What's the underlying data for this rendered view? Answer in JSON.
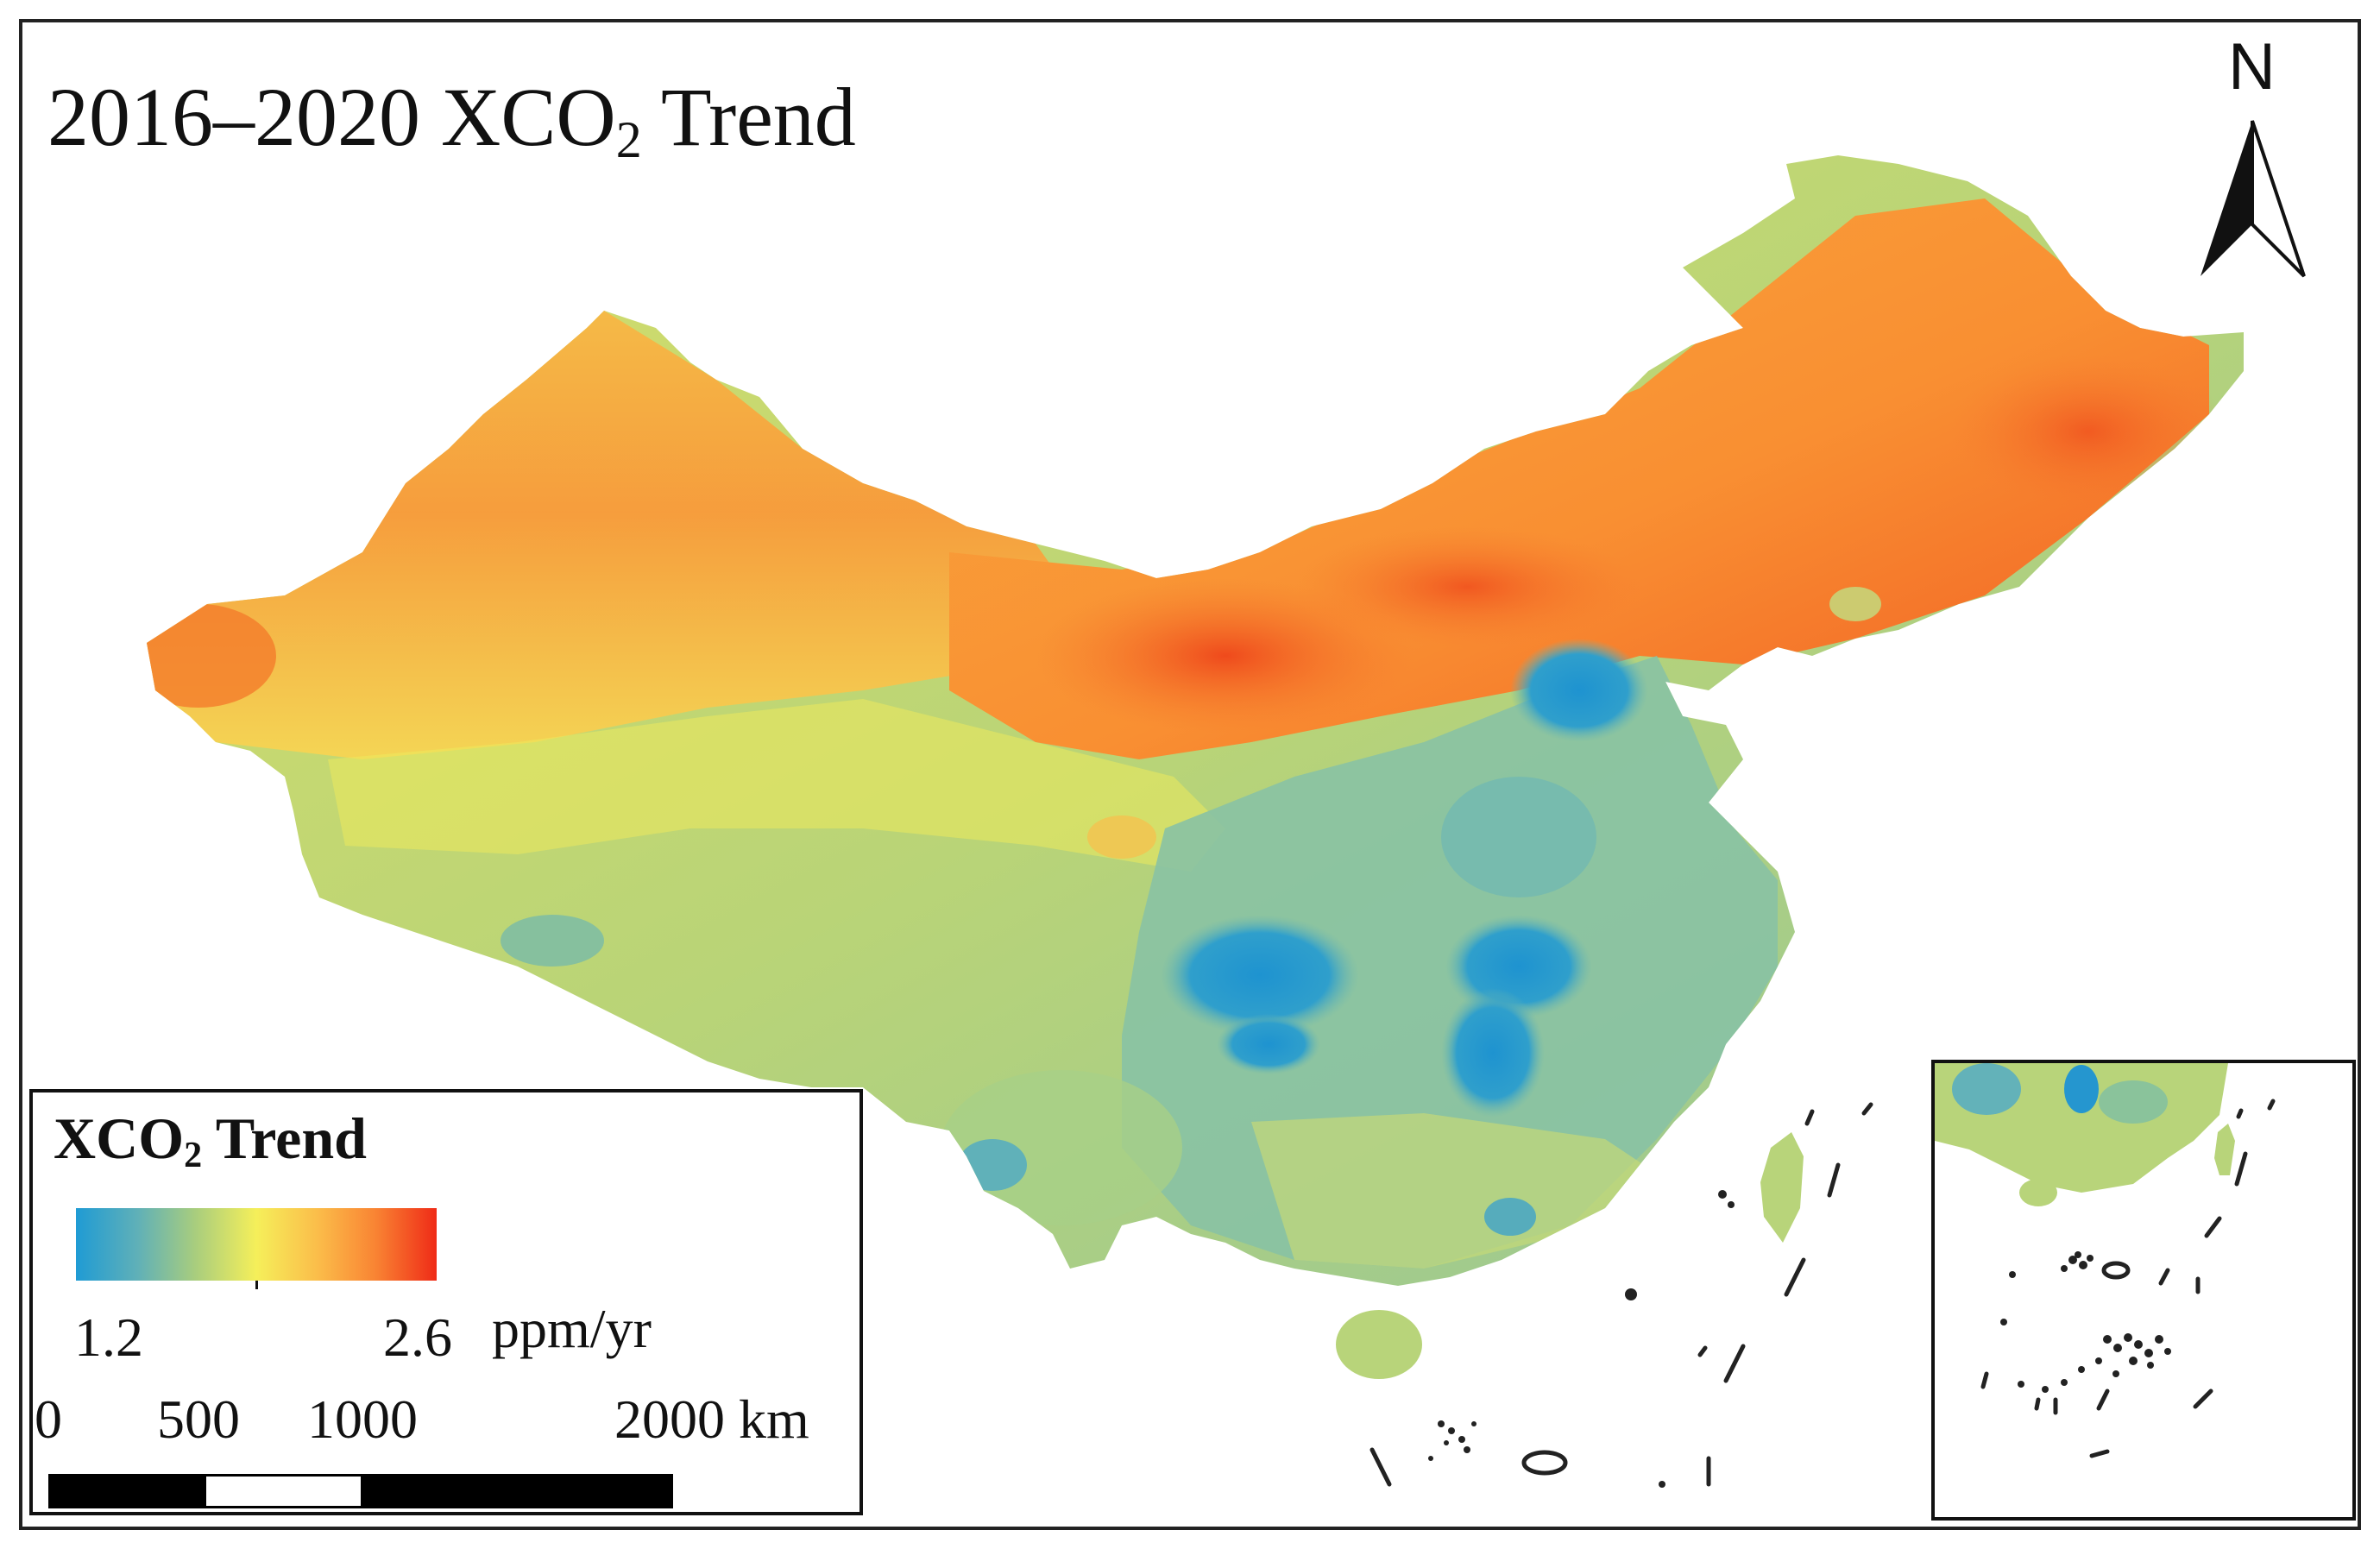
{
  "title": {
    "prefix": "2016–2020 XCO",
    "subscript": "2",
    "suffix": " Trend"
  },
  "north_arrow": {
    "label": "N",
    "icon": "north-arrow-icon"
  },
  "legend": {
    "title_prefix": "XCO",
    "title_subscript": "2",
    "title_suffix": " Trend",
    "min_label": "1.2",
    "max_label": "2.6",
    "unit": "ppm/yr",
    "min_value": 1.2,
    "max_value": 2.6,
    "colors": [
      "#1f9bd4",
      "#5fb0b8",
      "#a8cd7e",
      "#f5ef5a",
      "#fbbd4a",
      "#f98433",
      "#ef2b17"
    ]
  },
  "scale_bar": {
    "labels": [
      "0",
      "500",
      "1000",
      "2000 km"
    ],
    "ticks_km": [
      0,
      500,
      1000,
      2000
    ],
    "segment_colors": [
      "#000000",
      "#ffffff",
      "#000000"
    ]
  },
  "map": {
    "region_colors": {
      "high_trend": "#f26a1f",
      "north": "#f9a13c",
      "northwest": "#f7a841",
      "plateau": "#c9d86c",
      "east": "#8cc5a0",
      "low_trend": "#2596cf",
      "south": "#9ec98a"
    },
    "inset": {
      "name": "south-china-sea-inset"
    }
  }
}
